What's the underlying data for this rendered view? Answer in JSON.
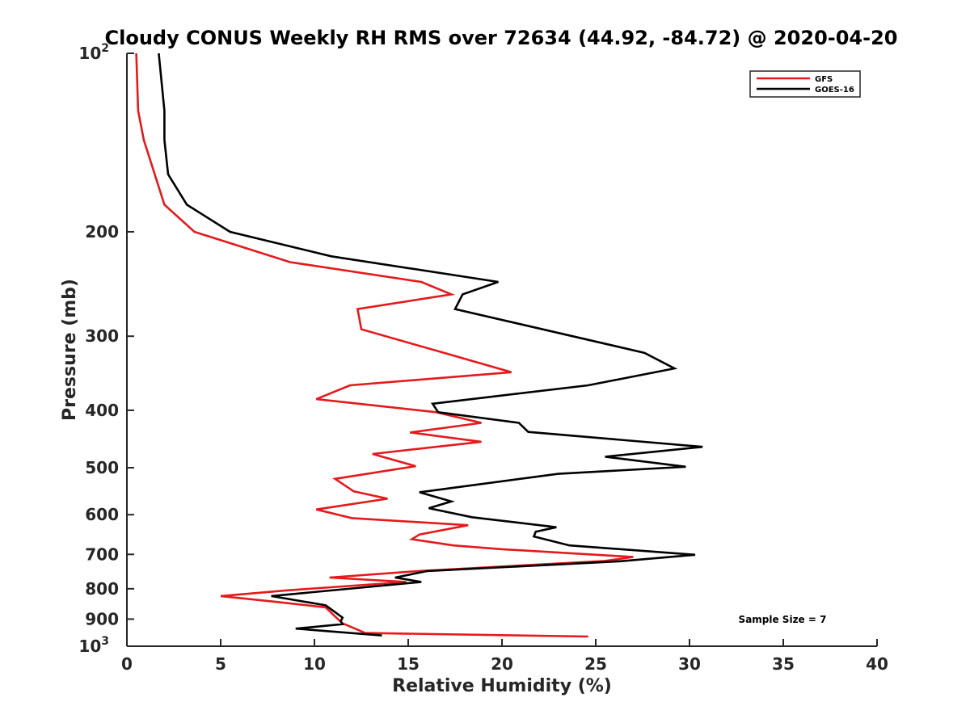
{
  "chart_data": {
    "type": "line",
    "title": "Cloudy CONUS Weekly RH RMS over 72634 (44.92, -84.72) @ 2020-04-20",
    "xlabel": "Relative Humidity (%)",
    "ylabel": "Pressure (mb)",
    "xlim": [
      0,
      40
    ],
    "ylim": [
      1000,
      100
    ],
    "y_scale": "log",
    "y_reversed": true,
    "grid": false,
    "legend_position": "top-right",
    "annotation": "Sample Size = 7",
    "x_ticks": [
      "0",
      "5",
      "10",
      "15",
      "20",
      "25",
      "30",
      "35",
      "40"
    ],
    "x_tick_values": [
      0,
      5,
      10,
      15,
      20,
      25,
      30,
      35,
      40
    ],
    "y_ticks": [
      {
        "value": 100,
        "base": "10",
        "exp": "2"
      },
      {
        "value": 200,
        "base": "200",
        "exp": ""
      },
      {
        "value": 300,
        "base": "300",
        "exp": ""
      },
      {
        "value": 400,
        "base": "400",
        "exp": ""
      },
      {
        "value": 500,
        "base": "500",
        "exp": ""
      },
      {
        "value": 600,
        "base": "600",
        "exp": ""
      },
      {
        "value": 700,
        "base": "700",
        "exp": ""
      },
      {
        "value": 800,
        "base": "800",
        "exp": ""
      },
      {
        "value": 900,
        "base": "900",
        "exp": ""
      },
      {
        "value": 1000,
        "base": "10",
        "exp": "3"
      }
    ],
    "series": [
      {
        "name": "GFS",
        "color": "#e41a1c",
        "points": [
          [
            0.5,
            100
          ],
          [
            0.6,
            125
          ],
          [
            0.9,
            140
          ],
          [
            2.0,
            180
          ],
          [
            3.6,
            200
          ],
          [
            8.7,
            225
          ],
          [
            15.7,
            243
          ],
          [
            17.3,
            255
          ],
          [
            12.3,
            270
          ],
          [
            12.5,
            292
          ],
          [
            16.9,
            320
          ],
          [
            20.5,
            345
          ],
          [
            11.9,
            363
          ],
          [
            10.1,
            383
          ],
          [
            16.5,
            403
          ],
          [
            18.9,
            420
          ],
          [
            15.1,
            436
          ],
          [
            18.9,
            452
          ],
          [
            13.1,
            474
          ],
          [
            15.4,
            497
          ],
          [
            11.1,
            522
          ],
          [
            12.1,
            548
          ],
          [
            13.9,
            564
          ],
          [
            10.1,
            588
          ],
          [
            12.0,
            608
          ],
          [
            18.2,
            625
          ],
          [
            15.6,
            648
          ],
          [
            15.2,
            660
          ],
          [
            17.4,
            676
          ],
          [
            20.0,
            686
          ],
          [
            27.0,
            707
          ],
          [
            25.5,
            718
          ],
          [
            15.5,
            747
          ],
          [
            10.8,
            766
          ],
          [
            14.9,
            779
          ],
          [
            8.5,
            805
          ],
          [
            5.0,
            823
          ],
          [
            8.0,
            842
          ],
          [
            10.6,
            860
          ],
          [
            11.1,
            891
          ],
          [
            11.5,
            915
          ],
          [
            12.3,
            938
          ],
          [
            12.7,
            950
          ],
          [
            24.6,
            963
          ]
        ]
      },
      {
        "name": "GOES-16",
        "color": "#000000",
        "points": [
          [
            1.7,
            100
          ],
          [
            2.0,
            125
          ],
          [
            2.0,
            140
          ],
          [
            2.2,
            160
          ],
          [
            3.2,
            180
          ],
          [
            5.5,
            200
          ],
          [
            10.9,
            220
          ],
          [
            19.8,
            243
          ],
          [
            17.9,
            255
          ],
          [
            17.5,
            270
          ],
          [
            27.6,
            320
          ],
          [
            29.2,
            340
          ],
          [
            24.6,
            363
          ],
          [
            16.3,
            390
          ],
          [
            16.6,
            403
          ],
          [
            20.9,
            420
          ],
          [
            21.4,
            435
          ],
          [
            30.7,
            461
          ],
          [
            25.5,
            479
          ],
          [
            29.8,
            498
          ],
          [
            23.0,
            512
          ],
          [
            15.6,
            550
          ],
          [
            17.3,
            570
          ],
          [
            16.1,
            585
          ],
          [
            18.4,
            606
          ],
          [
            22.9,
            630
          ],
          [
            21.8,
            641
          ],
          [
            21.7,
            653
          ],
          [
            23.6,
            676
          ],
          [
            30.3,
            701
          ],
          [
            26.3,
            719
          ],
          [
            16.0,
            747
          ],
          [
            14.3,
            766
          ],
          [
            15.7,
            779
          ],
          [
            7.7,
            823
          ],
          [
            10.6,
            853
          ],
          [
            11.1,
            876
          ],
          [
            11.5,
            895
          ],
          [
            11.4,
            908
          ],
          [
            11.5,
            918
          ],
          [
            9.0,
            934
          ],
          [
            13.6,
            959
          ]
        ]
      }
    ]
  }
}
